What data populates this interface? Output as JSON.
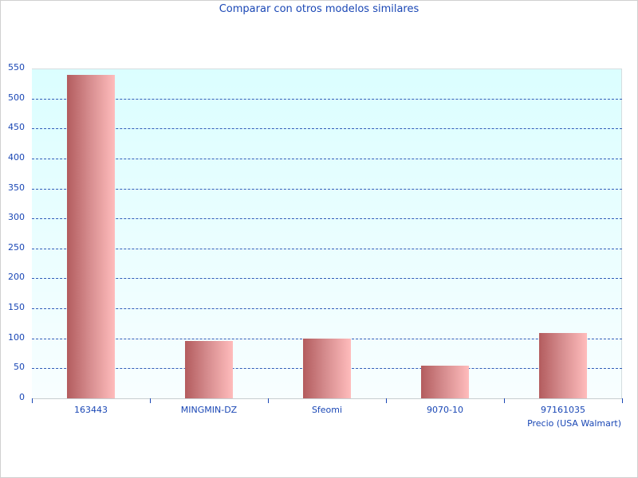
{
  "chart_data": {
    "type": "bar",
    "title": "Comparar con otros modelos similares",
    "xlabel": "Precio (USA Walmart)",
    "ylabel": "",
    "categories": [
      "163443",
      "MINGMIN-DZ",
      "Sfeomi",
      "9070-10",
      "97161035"
    ],
    "series": [
      {
        "name": "Precio (USA Walmart)",
        "values": [
          540,
          96,
          100,
          55,
          109
        ]
      }
    ],
    "ylim": [
      0,
      550
    ],
    "yticks": [
      0,
      50,
      100,
      150,
      200,
      250,
      300,
      350,
      400,
      450,
      500,
      550
    ],
    "grid": true,
    "legend": "none",
    "colors": {
      "bar_dark": "#b35c5e",
      "bar_light": "#ffbcbc",
      "text": "#1a47b5",
      "grid": "#2f5cb8",
      "bg_top": "#dbfeff",
      "bg_bottom": "#f8feff"
    }
  },
  "labels": {
    "title": "Comparar con otros modelos similares",
    "axis_title": "Precio (USA Walmart)",
    "yticks": [
      "0",
      "50",
      "100",
      "150",
      "200",
      "250",
      "300",
      "350",
      "400",
      "450",
      "500",
      "550"
    ],
    "categories": [
      "163443",
      "MINGMIN-DZ",
      "Sfeomi",
      "9070-10",
      "97161035"
    ]
  }
}
